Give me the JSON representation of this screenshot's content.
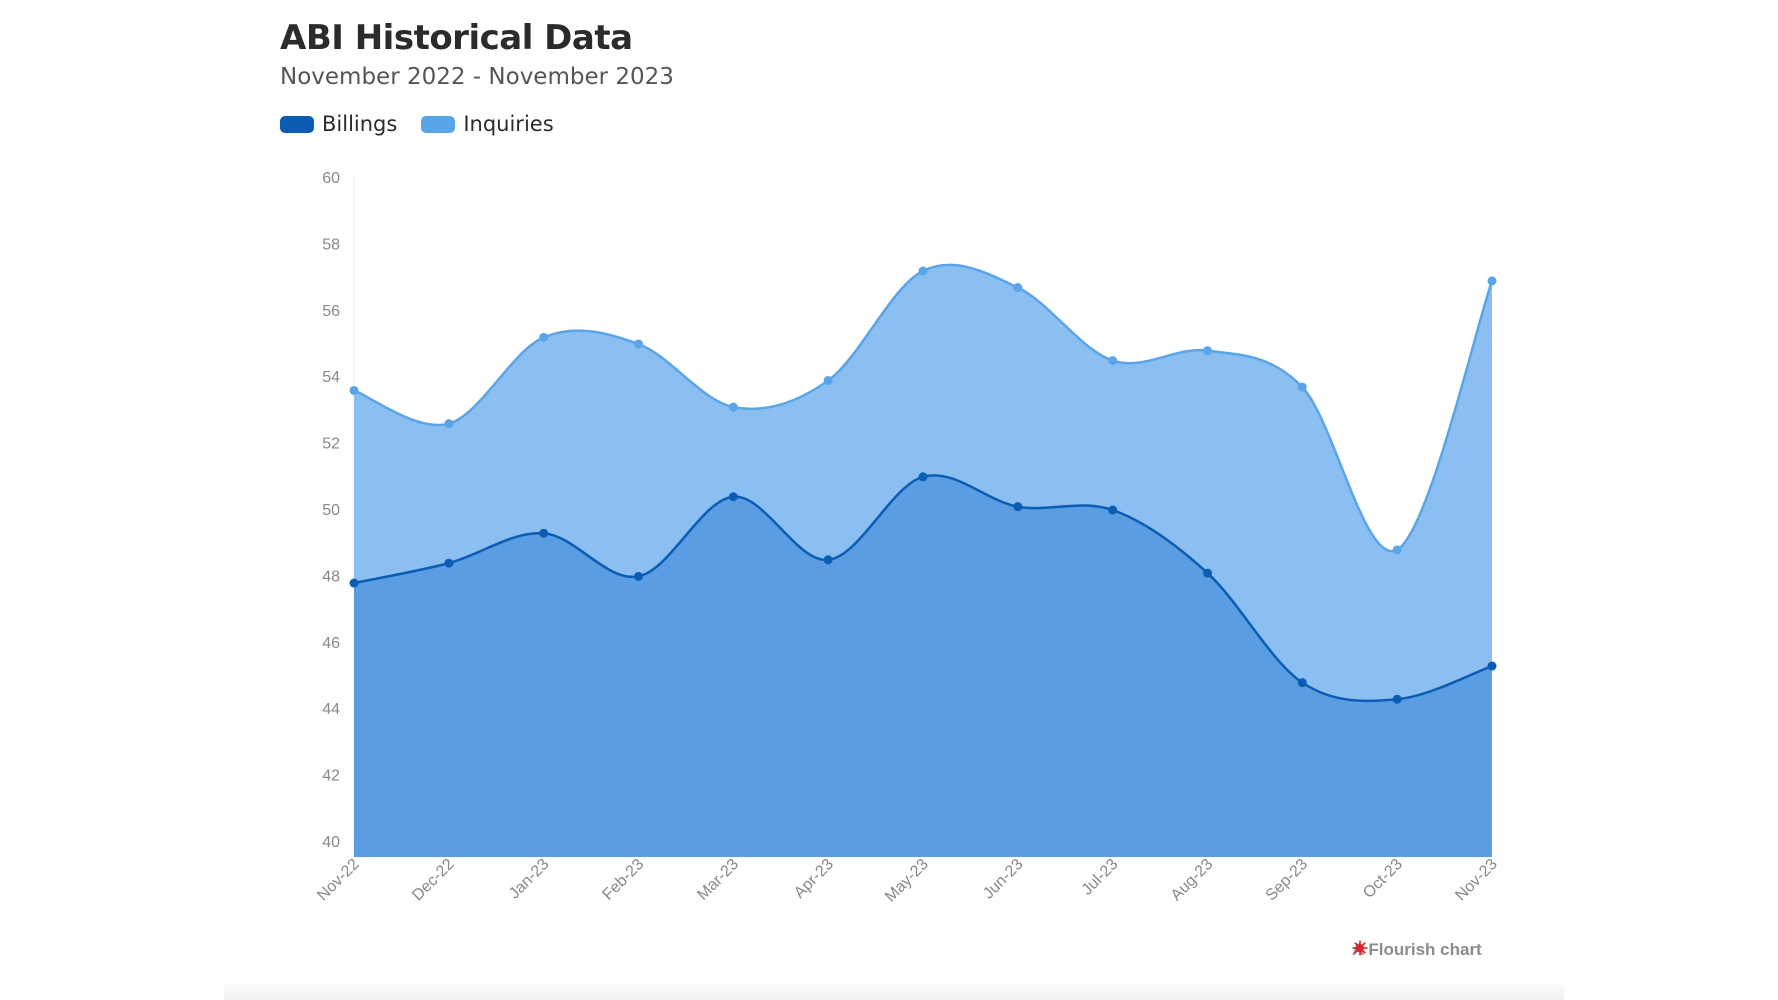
{
  "chart_data": {
    "type": "area",
    "title": "ABI Historical Data",
    "subtitle": "November 2022 - November 2023",
    "categories": [
      "Nov-22",
      "Dec-22",
      "Jan-23",
      "Feb-23",
      "Mar-23",
      "Apr-23",
      "May-23",
      "Jun-23",
      "Jul-23",
      "Aug-23",
      "Sep-23",
      "Oct-23",
      "Nov-23"
    ],
    "series": [
      {
        "name": "Inquiries",
        "color": "#5aa5ea",
        "fill": "#8bbff1",
        "values": [
          53.6,
          52.6,
          55.2,
          55.0,
          53.1,
          53.9,
          57.2,
          56.7,
          54.5,
          54.8,
          53.7,
          48.8,
          56.9
        ]
      },
      {
        "name": "Billings",
        "color": "#0b5db3",
        "fill": "#5a9de3",
        "values": [
          47.8,
          48.4,
          49.3,
          48.0,
          50.4,
          48.5,
          51.0,
          50.1,
          50.0,
          48.1,
          44.8,
          44.3,
          45.3
        ]
      }
    ],
    "ylim": [
      40,
      60
    ],
    "yticks": [
      40,
      42,
      44,
      46,
      48,
      50,
      52,
      54,
      56,
      58,
      60
    ],
    "xlabel": "",
    "ylabel": "",
    "grid": false,
    "legend_position": "top-left"
  },
  "legend": [
    {
      "label": "Billings",
      "color": "#0b5db3"
    },
    {
      "label": "Inquiries",
      "color": "#5aa5ea"
    }
  ],
  "credit": {
    "text": "A Flourish chart",
    "icon": "flourish-logo-icon",
    "color": "#d8262c"
  }
}
